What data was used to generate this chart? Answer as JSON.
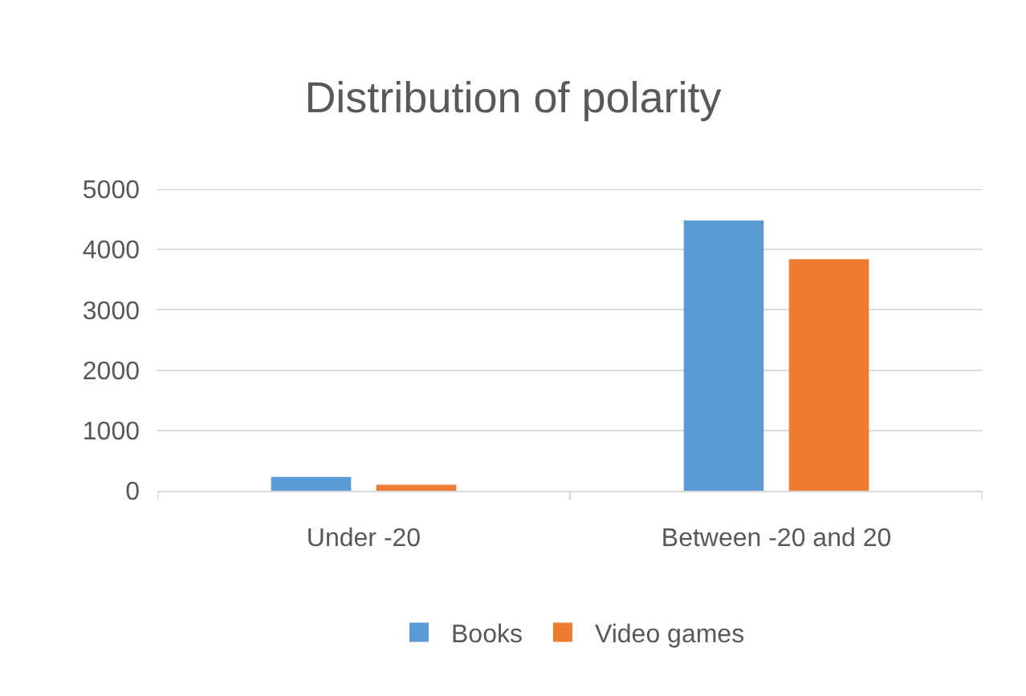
{
  "chart_data": {
    "type": "bar",
    "title": "Distribution of polarity",
    "categories": [
      "Under -20",
      "Between -20 and 20"
    ],
    "series": [
      {
        "name": "Books",
        "color": "#5b9bd5",
        "values": [
          230,
          4480
        ]
      },
      {
        "name": "Video games",
        "color": "#ed7d31",
        "values": [
          100,
          3840
        ]
      }
    ],
    "ylim": [
      0,
      5000
    ],
    "yticks": [
      0,
      1000,
      2000,
      3000,
      4000,
      5000
    ],
    "grid": "y",
    "legend": "bottom"
  }
}
